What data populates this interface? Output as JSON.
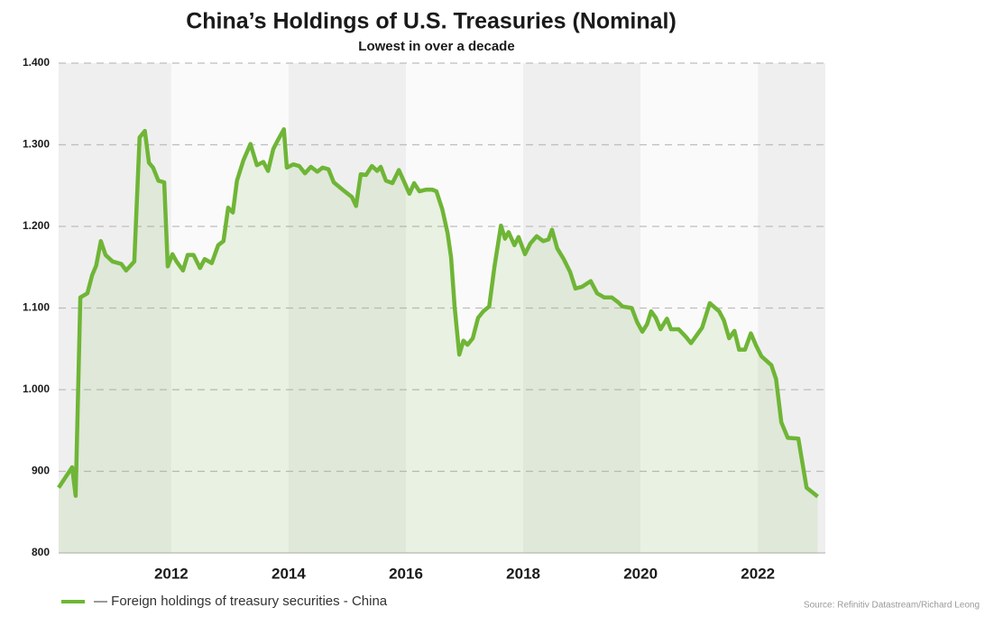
{
  "chart_data": {
    "type": "line",
    "title": "China’s Holdings of U.S. Treasuries (Nominal)",
    "subtitle": "Lowest in over a decade",
    "source": "Source: Refinitiv Datastream/Richard Leong",
    "xlim": [
      2010.08,
      2023.15
    ],
    "xticks": [
      2012,
      2014,
      2016,
      2018,
      2020,
      2022
    ],
    "ylim": [
      800,
      1400
    ],
    "yticks": [
      800,
      900,
      {
        "value": 1000,
        "label": "1.000"
      },
      {
        "value": 1100,
        "label": "1.100"
      },
      {
        "value": 1200,
        "label": "1.200"
      },
      {
        "value": 1300,
        "label": "1.300"
      },
      {
        "value": 1400,
        "label": "1.400"
      }
    ],
    "grid": true,
    "legend": "bottom-left",
    "x": [
      2010.08,
      2010.31,
      2010.37,
      2010.45,
      2010.57,
      2010.65,
      2010.72,
      2010.8,
      2010.88,
      2011.0,
      2011.15,
      2011.23,
      2011.37,
      2011.46,
      2011.55,
      2011.62,
      2011.69,
      2011.78,
      2011.88,
      2011.94,
      2012.02,
      2012.09,
      2012.2,
      2012.28,
      2012.38,
      2012.49,
      2012.57,
      2012.69,
      2012.8,
      2012.89,
      2012.97,
      2013.05,
      2013.12,
      2013.23,
      2013.35,
      2013.46,
      2013.57,
      2013.65,
      2013.74,
      2013.82,
      2013.92,
      2013.97,
      2014.08,
      2014.18,
      2014.28,
      2014.38,
      2014.49,
      2014.58,
      2014.68,
      2014.77,
      2014.92,
      2015.08,
      2015.15,
      2015.23,
      2015.32,
      2015.42,
      2015.51,
      2015.57,
      2015.66,
      2015.77,
      2015.88,
      2015.98,
      2016.06,
      2016.14,
      2016.23,
      2016.34,
      2016.45,
      2016.52,
      2016.62,
      2016.71,
      2016.77,
      2016.83,
      2016.91,
      2016.98,
      2017.05,
      2017.14,
      2017.23,
      2017.32,
      2017.42,
      2017.51,
      2017.62,
      2017.69,
      2017.75,
      2017.85,
      2017.92,
      2018.03,
      2018.12,
      2018.23,
      2018.34,
      2018.43,
      2018.49,
      2018.58,
      2018.69,
      2018.8,
      2018.89,
      2019.0,
      2019.15,
      2019.26,
      2019.38,
      2019.51,
      2019.62,
      2019.69,
      2019.85,
      2019.94,
      2020.03,
      2020.11,
      2020.18,
      2020.26,
      2020.34,
      2020.45,
      2020.52,
      2020.65,
      2020.77,
      2020.86,
      2021.05,
      2021.18,
      2021.34,
      2021.42,
      2021.51,
      2021.6,
      2021.68,
      2021.78,
      2021.88,
      2021.97,
      2022.06,
      2022.23,
      2022.31,
      2022.4,
      2022.51,
      2022.69,
      2022.83,
      2023.02
    ],
    "series": [
      {
        "name": "— Foreign holdings of treasury securities - China",
        "color": "#6fb536",
        "values": [
          880,
          905,
          870,
          1113,
          1118,
          1140,
          1152,
          1182,
          1165,
          1157,
          1154,
          1146,
          1157,
          1309,
          1317,
          1278,
          1272,
          1256,
          1254,
          1151,
          1166,
          1157,
          1146,
          1165,
          1165,
          1149,
          1160,
          1155,
          1177,
          1182,
          1223,
          1217,
          1256,
          1281,
          1301,
          1275,
          1279,
          1268,
          1295,
          1306,
          1319,
          1272,
          1276,
          1274,
          1265,
          1273,
          1267,
          1272,
          1270,
          1254,
          1245,
          1236,
          1225,
          1264,
          1263,
          1274,
          1268,
          1273,
          1256,
          1253,
          1269,
          1253,
          1240,
          1253,
          1243,
          1245,
          1245,
          1243,
          1221,
          1192,
          1162,
          1102,
          1043,
          1060,
          1055,
          1063,
          1088,
          1096,
          1102,
          1151,
          1201,
          1185,
          1193,
          1177,
          1187,
          1166,
          1179,
          1188,
          1182,
          1184,
          1196,
          1173,
          1160,
          1144,
          1124,
          1126,
          1133,
          1118,
          1113,
          1113,
          1107,
          1102,
          1100,
          1083,
          1071,
          1080,
          1096,
          1088,
          1074,
          1087,
          1074,
          1074,
          1065,
          1057,
          1076,
          1106,
          1096,
          1085,
          1063,
          1072,
          1049,
          1049,
          1069,
          1054,
          1041,
          1030,
          1013,
          960,
          941,
          940,
          880,
          869
        ]
      }
    ]
  }
}
